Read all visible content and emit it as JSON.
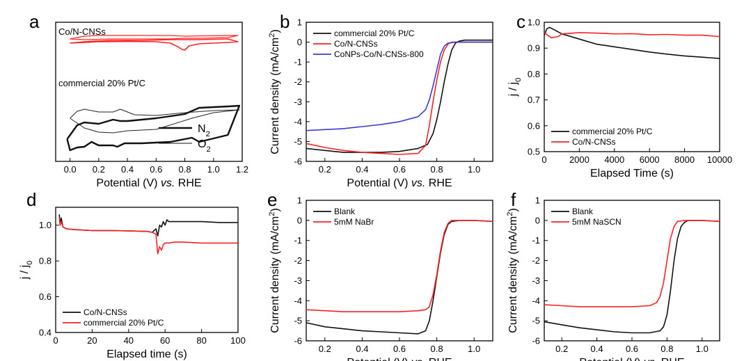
{
  "figure": {
    "panels": [
      {
        "id": "a",
        "label": "a"
      },
      {
        "id": "b",
        "label": "b"
      },
      {
        "id": "c",
        "label": "c"
      },
      {
        "id": "d",
        "label": "d"
      },
      {
        "id": "e",
        "label": "e"
      },
      {
        "id": "f",
        "label": "f"
      }
    ]
  },
  "chart_data": [
    {
      "panel": "a",
      "type": "line",
      "title": "",
      "xlabel": "Potential (V) vs. RHE",
      "ylabel": "",
      "xlim": [
        -0.1,
        1.2
      ],
      "ylim": [
        0,
        10
      ],
      "xticks": [
        "0.0",
        "0.2",
        "0.4",
        "0.6",
        "0.8",
        "1.0",
        "1.2"
      ],
      "annotations": [
        "Co/N-CNSs",
        "commercial 20% Pt/C"
      ],
      "legend": {
        "position": "bottom-right",
        "entries": [
          "N2",
          "O2"
        ]
      },
      "series": [
        {
          "name": "Co/N-CNSs",
          "color": "#ff2020",
          "width": 1.2,
          "x": [
            0,
            0.1,
            0.2,
            0.3,
            0.4,
            0.5,
            0.6,
            0.7,
            0.8,
            0.9,
            1.0,
            1.1,
            1.17,
            1.1,
            0.9,
            0.8,
            0.7,
            0.5,
            0.3,
            0.1,
            0
          ],
          "y": [
            8.8,
            9.0,
            9.05,
            9.05,
            9.05,
            9.05,
            9.05,
            9.05,
            9.0,
            9.02,
            9.03,
            9.05,
            9.05,
            8.9,
            8.85,
            8.85,
            8.8,
            8.8,
            8.8,
            8.75,
            8.8
          ]
        },
        {
          "name": "Co/N-CNSs O2",
          "color": "#ff2020",
          "width": 1.6,
          "x": [
            0,
            0.2,
            0.4,
            0.6,
            0.7,
            0.75,
            0.78,
            0.8,
            0.83,
            0.9,
            1.0,
            1.1,
            1.17,
            1.1,
            0.9,
            0.7,
            0.5,
            0.3,
            0.1,
            0
          ],
          "y": [
            8.5,
            8.6,
            8.62,
            8.6,
            8.5,
            8.25,
            8.05,
            8.0,
            8.3,
            8.45,
            8.5,
            8.55,
            8.6,
            8.8,
            8.75,
            8.75,
            8.7,
            8.7,
            8.6,
            8.5
          ]
        },
        {
          "name": "N2",
          "color": "#111111",
          "width": 2.4,
          "x": [
            -0.02,
            0.05,
            0.1,
            0.2,
            0.3,
            0.35,
            0.4,
            0.6,
            0.8,
            0.9,
            1.0,
            1.1,
            1.18,
            1.1,
            0.9,
            0.85,
            0.8,
            0.7,
            0.5,
            0.38,
            0.33,
            0.3,
            0.2,
            0.15,
            0.1,
            0.05,
            0,
            -0.02
          ],
          "y": [
            1.6,
            2.6,
            2.8,
            2.7,
            3.0,
            2.9,
            2.9,
            3.1,
            3.4,
            3.85,
            3.9,
            3.95,
            4.0,
            1.9,
            1.4,
            1.7,
            1.6,
            1.4,
            1.3,
            1.3,
            1.05,
            1.15,
            1.15,
            1.4,
            1.05,
            1.0,
            0.8,
            1.6
          ]
        },
        {
          "name": "O2",
          "color": "#222222",
          "width": 1.0,
          "x": [
            0,
            0.05,
            0.1,
            0.2,
            0.3,
            0.35,
            0.45,
            0.6,
            0.8,
            1.0,
            1.18,
            1.0,
            0.85,
            0.6,
            0.4,
            0.3,
            0.2,
            0.1,
            0
          ],
          "y": [
            3.1,
            3.6,
            3.75,
            3.55,
            3.55,
            3.75,
            3.35,
            3.3,
            3.5,
            3.65,
            3.7,
            3.5,
            3.1,
            2.3,
            2.2,
            2.05,
            2.1,
            2.4,
            3.1
          ]
        }
      ]
    },
    {
      "panel": "b",
      "type": "line",
      "xlabel": "Potential (V) vs. RHE",
      "ylabel": "Current density (mA/cm2)",
      "xlim": [
        0.1,
        1.1
      ],
      "ylim": [
        -6,
        1
      ],
      "xticks": [
        "0.2",
        "0.4",
        "0.6",
        "0.8",
        "1.0"
      ],
      "yticks": [
        "1",
        "0",
        "-1",
        "-2",
        "-3",
        "-4",
        "-5",
        "-6"
      ],
      "legend": {
        "position": "top-left"
      },
      "series": [
        {
          "name": "commercial 20% Pt/C",
          "color": "#111111",
          "x": [
            0.1,
            0.2,
            0.3,
            0.4,
            0.5,
            0.6,
            0.7,
            0.75,
            0.78,
            0.8,
            0.82,
            0.84,
            0.86,
            0.88,
            0.9,
            0.92,
            0.95,
            1.0,
            1.1
          ],
          "y": [
            -5.35,
            -5.45,
            -5.55,
            -5.55,
            -5.55,
            -5.5,
            -5.35,
            -5.15,
            -4.6,
            -3.9,
            -3.0,
            -2.0,
            -1.1,
            -0.4,
            -0.05,
            0.05,
            0.1,
            0.1,
            0.1
          ]
        },
        {
          "name": "Co/N-CNSs",
          "color": "#ff2020",
          "x": [
            0.1,
            0.2,
            0.3,
            0.4,
            0.5,
            0.6,
            0.7,
            0.74,
            0.76,
            0.78,
            0.8,
            0.82,
            0.84,
            0.86,
            0.88,
            0.92,
            1.0,
            1.1
          ],
          "y": [
            -5.1,
            -5.3,
            -5.45,
            -5.55,
            -5.6,
            -5.65,
            -5.6,
            -5.2,
            -4.2,
            -3.0,
            -1.9,
            -1.0,
            -0.4,
            -0.1,
            0.0,
            0.0,
            0.0,
            0.0
          ]
        },
        {
          "name": "CoNPs-Co/N-CNSs-800",
          "color": "#3a3adc",
          "x": [
            0.1,
            0.2,
            0.3,
            0.4,
            0.5,
            0.6,
            0.7,
            0.74,
            0.76,
            0.78,
            0.8,
            0.82,
            0.84,
            0.86,
            0.9,
            1.0,
            1.1
          ],
          "y": [
            -4.45,
            -4.4,
            -4.35,
            -4.25,
            -4.15,
            -4.0,
            -3.75,
            -3.4,
            -2.9,
            -2.2,
            -1.4,
            -0.6,
            -0.2,
            -0.05,
            0.0,
            0.0,
            0.0
          ]
        }
      ]
    },
    {
      "panel": "c",
      "type": "line",
      "xlabel": "Elapsed Time (s)",
      "ylabel": "j / j0",
      "xlim": [
        0,
        10000
      ],
      "ylim": [
        0.5,
        1.0
      ],
      "xticks": [
        "0",
        "2000",
        "4000",
        "6000",
        "8000",
        "10000"
      ],
      "yticks": [
        "1.0",
        "0.9",
        "0.8",
        "0.7",
        "0.6",
        "0.5"
      ],
      "legend": {
        "position": "bottom-left"
      },
      "series": [
        {
          "name": "commercial 20% Pt/C",
          "color": "#111111",
          "x": [
            0,
            150,
            300,
            600,
            1000,
            2000,
            3000,
            4000,
            5000,
            6000,
            7000,
            8000,
            9000,
            10000
          ],
          "y": [
            0.95,
            0.975,
            0.98,
            0.97,
            0.955,
            0.935,
            0.915,
            0.905,
            0.895,
            0.885,
            0.877,
            0.87,
            0.865,
            0.86
          ]
        },
        {
          "name": "Co/N-CNSs",
          "color": "#ff2020",
          "x": [
            0,
            200,
            400,
            800,
            1000,
            2000,
            3000,
            4000,
            5000,
            6000,
            7000,
            8000,
            9000,
            10000
          ],
          "y": [
            0.96,
            0.95,
            0.94,
            0.945,
            0.955,
            0.96,
            0.958,
            0.955,
            0.956,
            0.952,
            0.953,
            0.95,
            0.95,
            0.945
          ]
        }
      ]
    },
    {
      "panel": "d",
      "type": "line",
      "xlabel": "Elapsed time (s)",
      "ylabel": "j / j0",
      "xlim": [
        0,
        100
      ],
      "ylim": [
        0.4,
        1.1
      ],
      "xticks": [
        "0",
        "20",
        "40",
        "60",
        "80",
        "100"
      ],
      "yticks": [
        "1.0",
        "0.8",
        "0.6",
        "0.4"
      ],
      "legend": {
        "position": "bottom-left"
      },
      "series": [
        {
          "name": "Co/N-CNSs",
          "color": "#111111",
          "x": [
            2,
            2.5,
            3,
            4,
            6,
            10,
            20,
            30,
            40,
            50,
            53,
            55,
            56,
            57,
            58,
            59,
            60,
            61,
            62,
            65,
            70,
            80,
            90,
            100
          ],
          "y": [
            1.06,
            1.0,
            1.04,
            0.99,
            0.98,
            0.975,
            0.97,
            0.97,
            0.968,
            0.965,
            0.96,
            0.98,
            0.94,
            1.0,
            0.99,
            1.02,
            1.0,
            1.03,
            1.02,
            1.02,
            1.02,
            1.02,
            1.015,
            1.015
          ]
        },
        {
          "name": "commercial 20% Pt/C",
          "color": "#ff2020",
          "x": [
            2,
            2.5,
            3,
            4,
            6,
            10,
            20,
            30,
            40,
            50,
            53,
            55,
            56,
            57,
            58,
            59,
            60,
            62,
            65,
            70,
            80,
            90,
            100
          ],
          "y": [
            1.04,
            1.0,
            1.02,
            0.99,
            0.98,
            0.975,
            0.97,
            0.97,
            0.968,
            0.965,
            0.96,
            0.95,
            0.84,
            0.88,
            0.86,
            0.89,
            0.9,
            0.9,
            0.905,
            0.905,
            0.9,
            0.9,
            0.9
          ]
        }
      ]
    },
    {
      "panel": "e",
      "type": "line",
      "xlabel": "Potential (V) vs. RHE",
      "ylabel": "Current density (mA/cm2)",
      "xlim": [
        0.1,
        1.1
      ],
      "ylim": [
        -6,
        1
      ],
      "xticks": [
        "0.2",
        "0.4",
        "0.6",
        "0.8",
        "1.0"
      ],
      "yticks": [
        "1",
        "0",
        "-1",
        "-2",
        "-3",
        "-4",
        "-5",
        "-6"
      ],
      "legend": {
        "position": "top-left"
      },
      "series": [
        {
          "name": "Blank",
          "color": "#111111",
          "x": [
            0.1,
            0.2,
            0.3,
            0.4,
            0.5,
            0.6,
            0.7,
            0.74,
            0.76,
            0.78,
            0.8,
            0.82,
            0.84,
            0.86,
            0.88,
            0.92,
            1.0,
            1.1
          ],
          "y": [
            -5.1,
            -5.3,
            -5.4,
            -5.5,
            -5.55,
            -5.6,
            -5.65,
            -5.5,
            -5.0,
            -4.0,
            -2.8,
            -1.6,
            -0.7,
            -0.2,
            -0.05,
            0.0,
            0.0,
            -0.05
          ]
        },
        {
          "name": "5mM NaBr",
          "color": "#ff2020",
          "x": [
            0.1,
            0.2,
            0.3,
            0.4,
            0.5,
            0.6,
            0.7,
            0.74,
            0.76,
            0.78,
            0.8,
            0.82,
            0.84,
            0.86,
            0.88,
            0.92,
            1.0,
            1.1
          ],
          "y": [
            -4.45,
            -4.5,
            -4.55,
            -4.55,
            -4.55,
            -4.55,
            -4.5,
            -4.45,
            -4.3,
            -3.7,
            -2.7,
            -1.5,
            -0.6,
            -0.15,
            0.0,
            0.0,
            0.0,
            -0.05
          ]
        }
      ]
    },
    {
      "panel": "f",
      "type": "line",
      "xlabel": "Potential (V) vs. RHE",
      "ylabel": "Current density (mA/cm2)",
      "xlim": [
        0.1,
        1.1
      ],
      "ylim": [
        -6,
        1
      ],
      "xticks": [
        "0.2",
        "0.4",
        "0.6",
        "0.8",
        "1.0"
      ],
      "yticks": [
        "1",
        "0",
        "-1",
        "-2",
        "-3",
        "-4",
        "-5",
        "-6"
      ],
      "legend": {
        "position": "top-left"
      },
      "series": [
        {
          "name": "Blank",
          "color": "#111111",
          "x": [
            0.1,
            0.2,
            0.3,
            0.4,
            0.5,
            0.6,
            0.7,
            0.76,
            0.78,
            0.8,
            0.82,
            0.84,
            0.86,
            0.88,
            0.9,
            0.92,
            1.0,
            1.1
          ],
          "y": [
            -5.05,
            -5.2,
            -5.35,
            -5.45,
            -5.55,
            -5.6,
            -5.6,
            -5.5,
            -5.3,
            -4.7,
            -3.5,
            -2.0,
            -0.9,
            -0.3,
            -0.1,
            0.0,
            0.0,
            -0.05
          ]
        },
        {
          "name": "5mM NaSCN",
          "color": "#ff2020",
          "x": [
            0.1,
            0.2,
            0.3,
            0.4,
            0.5,
            0.6,
            0.7,
            0.74,
            0.76,
            0.78,
            0.8,
            0.82,
            0.84,
            0.86,
            0.9,
            1.0,
            1.1
          ],
          "y": [
            -4.2,
            -4.25,
            -4.3,
            -4.3,
            -4.3,
            -4.3,
            -4.25,
            -4.1,
            -3.8,
            -3.1,
            -2.0,
            -0.9,
            -0.3,
            -0.05,
            0.0,
            0.0,
            -0.05
          ]
        }
      ]
    }
  ]
}
